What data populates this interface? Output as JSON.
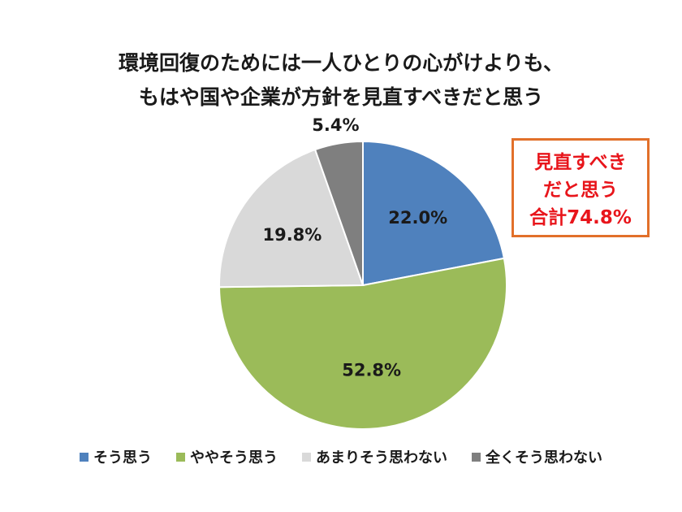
{
  "title_lines": [
    "環境回復のためには一人ひとりの心がけよりも、",
    "もはや国や企業が方針を見直すべきだと思う"
  ],
  "callout": [
    "見直すべき",
    "だと思う",
    "合計74.8%"
  ],
  "chart_data": {
    "type": "pie",
    "slices": [
      {
        "label": "そう思う",
        "value": 22.0,
        "display": "22.0%",
        "color": "#4f81bd"
      },
      {
        "label": "ややそう思う",
        "value": 52.8,
        "display": "52.8%",
        "color": "#9bbb59"
      },
      {
        "label": "あまりそう思わない",
        "value": 19.8,
        "display": "19.8%",
        "color": "#d9d9d9"
      },
      {
        "label": "全くそう思わない",
        "value": 5.4,
        "display": "5.4%",
        "color": "#7f7f7f"
      }
    ],
    "start": "top, clockwise",
    "legend": "bottom"
  }
}
